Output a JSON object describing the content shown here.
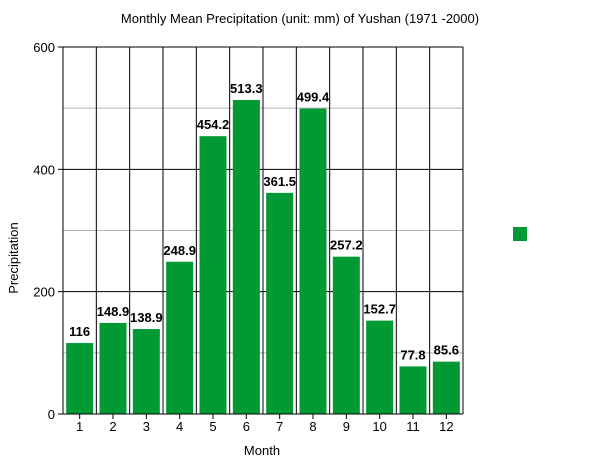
{
  "chart_data": {
    "type": "bar",
    "title": "Monthly Mean Precipitation (unit: mm) of Yushan (1971 -2000)",
    "xlabel": "Month",
    "ylabel": "Precipitation",
    "categories": [
      "1",
      "2",
      "3",
      "4",
      "5",
      "6",
      "7",
      "8",
      "9",
      "10",
      "11",
      "12"
    ],
    "values": [
      116,
      148.9,
      138.9,
      248.9,
      454.2,
      513.3,
      361.5,
      499.4,
      257.2,
      152.7,
      77.8,
      85.6
    ],
    "data_labels": [
      "116",
      "148.9",
      "138.9",
      "248.9",
      "454.2",
      "513.3",
      "361.5",
      "499.4",
      "257.2",
      "152.7",
      "77.8",
      "85.6"
    ],
    "ylim": [
      0,
      600
    ],
    "y_ticks": [
      "0",
      "200",
      "400",
      "600"
    ],
    "grid": true,
    "legend": "right",
    "colors": {
      "bar": "#009933",
      "major_grid": "#000000",
      "minor_grid": "#b3b3b3"
    }
  }
}
